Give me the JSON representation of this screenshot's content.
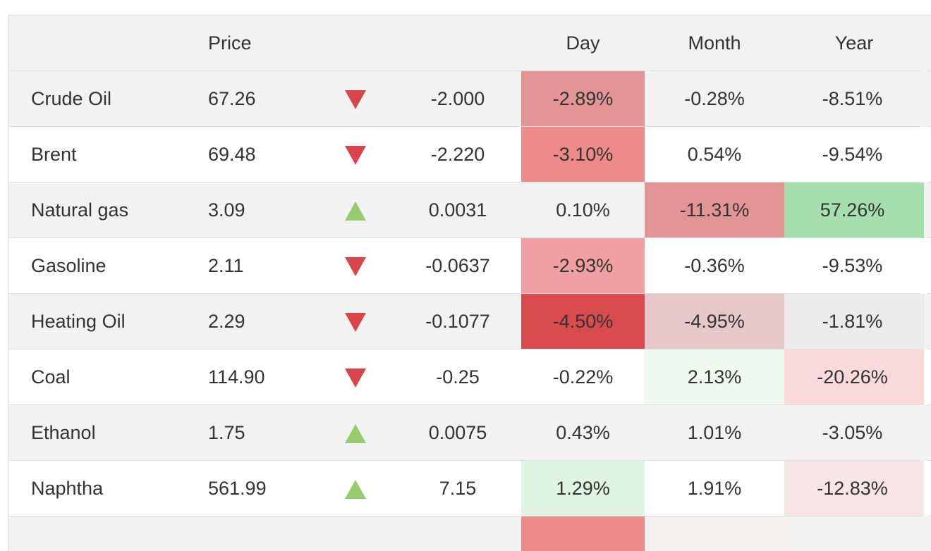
{
  "header": {
    "price": "Price",
    "day": "Day",
    "month": "Month",
    "year": "Year"
  },
  "colors": {
    "down_arrow": "#d9454a",
    "up_arrow": "#95cb6c",
    "row_alt": "#f2f2f2"
  },
  "rows": [
    {
      "name": "Crude Oil",
      "price": "67.26",
      "direction": "down",
      "change": "-2.000",
      "day": "-2.89%",
      "month": "-0.28%",
      "year": "-8.51%",
      "day_bg": "#e39596",
      "month_bg": "",
      "year_bg": ""
    },
    {
      "name": "Brent",
      "price": "69.48",
      "direction": "down",
      "change": "-2.220",
      "day": "-3.10%",
      "month": "0.54%",
      "year": "-9.54%",
      "day_bg": "#ec8b8a",
      "month_bg": "",
      "year_bg": ""
    },
    {
      "name": "Natural gas",
      "price": "3.09",
      "direction": "up",
      "change": "0.0031",
      "day": "0.10%",
      "month": "-11.31%",
      "year": "57.26%",
      "day_bg": "",
      "month_bg": "#e39596",
      "year_bg": "#a6dfae"
    },
    {
      "name": "Gasoline",
      "price": "2.11",
      "direction": "down",
      "change": "-0.0637",
      "day": "-2.93%",
      "month": "-0.36%",
      "year": "-9.53%",
      "day_bg": "#f0a0a2",
      "month_bg": "",
      "year_bg": ""
    },
    {
      "name": "Heating Oil",
      "price": "2.29",
      "direction": "down",
      "change": "-0.1077",
      "day": "-4.50%",
      "month": "-4.95%",
      "year": "-1.81%",
      "day_bg": "#d84c4d",
      "month_bg": "#e6c8c9",
      "year_bg": "#ebebeb"
    },
    {
      "name": "Coal",
      "price": "114.90",
      "direction": "down",
      "change": "-0.25",
      "day": "-0.22%",
      "month": "2.13%",
      "year": "-20.26%",
      "day_bg": "",
      "month_bg": "#eefaee",
      "year_bg": "#f8dadb"
    },
    {
      "name": "Ethanol",
      "price": "1.75",
      "direction": "up",
      "change": "0.0075",
      "day": "0.43%",
      "month": "1.01%",
      "year": "-3.05%",
      "day_bg": "",
      "month_bg": "",
      "year_bg": ""
    },
    {
      "name": "Naphtha",
      "price": "561.99",
      "direction": "up",
      "change": "7.15",
      "day": "1.29%",
      "month": "1.91%",
      "year": "-12.83%",
      "day_bg": "#dff5e2",
      "month_bg": "",
      "year_bg": "#f8e6e7"
    },
    {
      "name": "",
      "price": "",
      "direction": "",
      "change": "",
      "day": "",
      "month": "",
      "year": "",
      "day_bg": "#ec8b8a",
      "month_bg": "#f5f0f0",
      "year_bg": "",
      "partial": true
    }
  ]
}
